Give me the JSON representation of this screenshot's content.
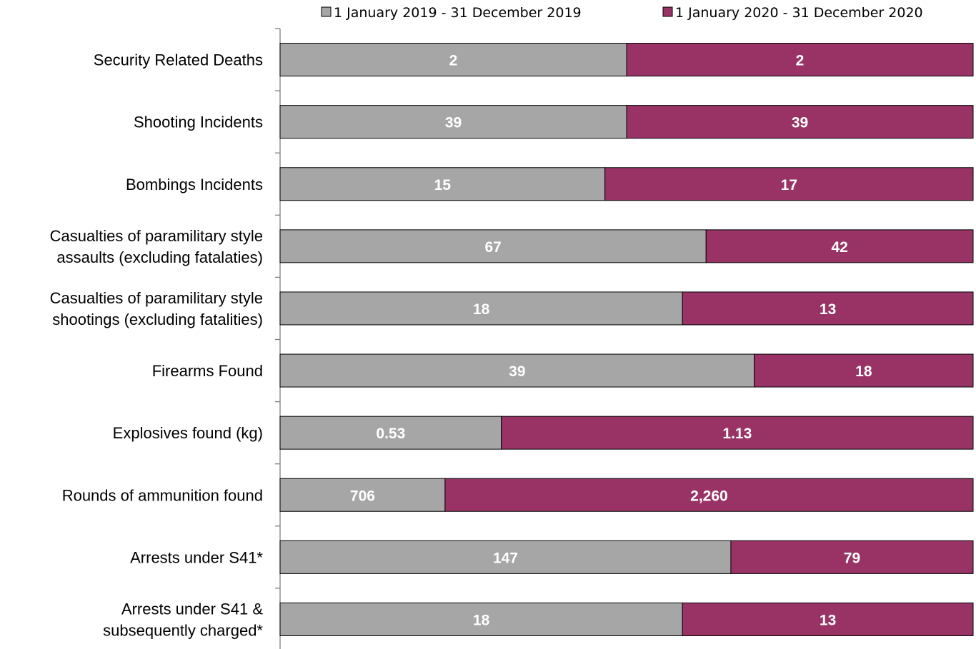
{
  "chart_data": {
    "type": "bar",
    "orientation": "horizontal",
    "stacking": "100%",
    "legend_position": "top",
    "grid": false,
    "categories": [
      [
        "Security Related Deaths"
      ],
      [
        "Shooting Incidents"
      ],
      [
        "Bombings Incidents"
      ],
      [
        "Casualties of paramilitary style",
        "assaults (excluding fatalaties)"
      ],
      [
        "Casualties of paramilitary style",
        "shootings (excluding fatalities)"
      ],
      [
        "Firearms Found"
      ],
      [
        "Explosives found (kg)"
      ],
      [
        "Rounds of ammunition found"
      ],
      [
        "Arrests under S41*"
      ],
      [
        "Arrests under S41 &",
        "subsequently charged*"
      ]
    ],
    "series": [
      {
        "name": "1 January 2019 - 31 December 2019",
        "color": "#a6a6a6",
        "values": [
          2,
          39,
          15,
          67,
          18,
          39,
          0.53,
          706,
          147,
          18
        ],
        "labels": [
          "2",
          "39",
          "15",
          "67",
          "18",
          "39",
          "0.53",
          "706",
          "147",
          "18"
        ]
      },
      {
        "name": "1 January 2020 - 31 December 2020",
        "color": "#993366",
        "values": [
          2,
          39,
          17,
          42,
          13,
          18,
          1.13,
          2260,
          79,
          13
        ],
        "labels": [
          "2",
          "39",
          "17",
          "42",
          "13",
          "18",
          "1.13",
          "2,260",
          "79",
          "13"
        ]
      }
    ]
  }
}
